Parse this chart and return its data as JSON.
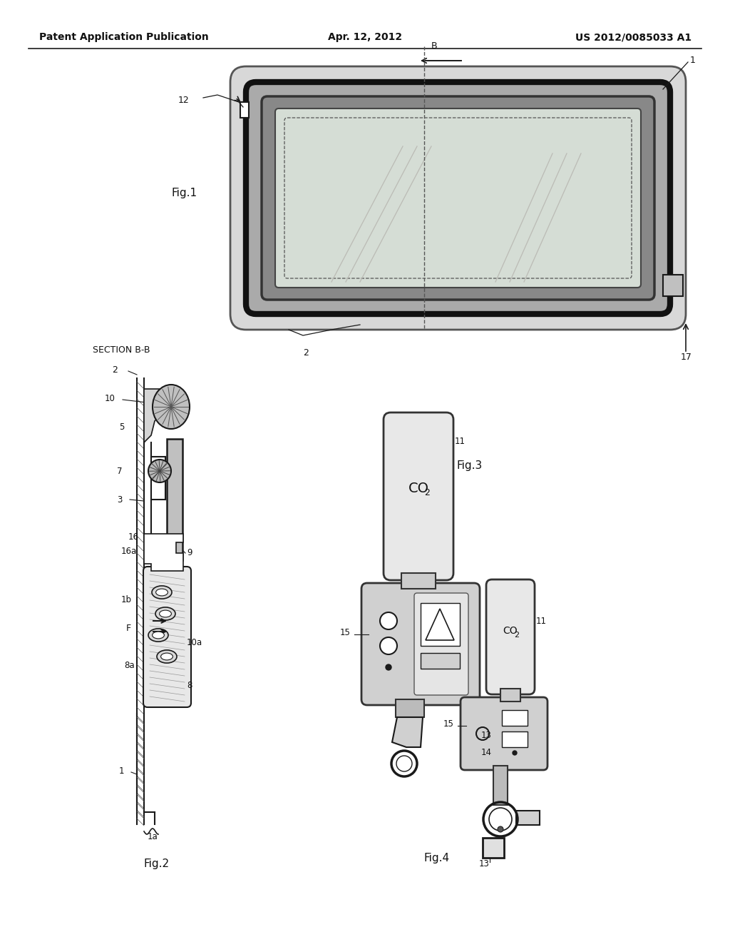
{
  "bg_color": "#ffffff",
  "header_left": "Patent Application Publication",
  "header_center": "Apr. 12, 2012",
  "header_right": "US 2012/0085033 A1",
  "line_color": "#1a1a1a",
  "text_color": "#111111",
  "fig1_label": "Fig.1",
  "fig2_label": "Fig.2",
  "fig3_label": "Fig.3",
  "fig4_label": "Fig.4",
  "section_label": "SECTION B-B",
  "gray_light": "#e0e0e0",
  "gray_mid": "#b0b0b0",
  "gray_dark": "#707070",
  "gray_hatch": "#888888"
}
